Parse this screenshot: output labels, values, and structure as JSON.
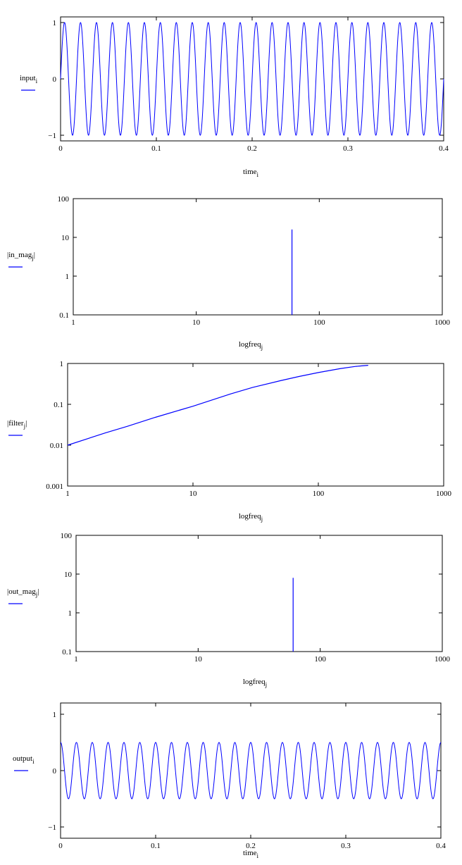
{
  "chart_data": [
    {
      "type": "line",
      "id": "input",
      "ylabel": "input",
      "ylabel_sub": "i",
      "xlabel": "time",
      "xlabel_sub": "i",
      "xscale": "linear",
      "yscale": "linear",
      "xlim": [
        0,
        0.4
      ],
      "ylim": [
        -1.1,
        1.1
      ],
      "xticks": [
        0,
        0.1,
        0.2,
        0.3,
        0.4
      ],
      "xtick_labels": [
        "0",
        "0.1",
        "0.2",
        "0.3",
        "0.4"
      ],
      "yticks": [
        1,
        0,
        -1
      ],
      "ytick_labels": [
        "1",
        "0",
        "−1"
      ],
      "grid": false,
      "color": "#0000ff",
      "series": [
        {
          "function": "sine",
          "amplitude": 1,
          "frequency": 60,
          "phase": 0,
          "x_start": 0,
          "x_end": 0.4
        }
      ]
    },
    {
      "type": "line",
      "id": "in_mag",
      "ylabel": "in_mag",
      "ylabel_sub": "j",
      "ylabel_abs": true,
      "xlabel": "logfreq",
      "xlabel_sub": "j",
      "xscale": "log",
      "yscale": "log",
      "xlim": [
        1,
        1000
      ],
      "ylim": [
        0.1,
        100
      ],
      "xticks": [
        1,
        10,
        100,
        1000
      ],
      "xtick_labels": [
        "1",
        "10",
        "100",
        "1000"
      ],
      "yticks": [
        100,
        10,
        1,
        0.1
      ],
      "ytick_labels": [
        "100",
        "10",
        "1",
        "0.1"
      ],
      "grid": false,
      "color": "#0000ff",
      "series": [
        {
          "spike": {
            "x": 60,
            "y": 16
          }
        }
      ]
    },
    {
      "type": "line",
      "id": "filter",
      "ylabel": "filter",
      "ylabel_sub": "j",
      "ylabel_abs": true,
      "xlabel": "logfreq",
      "xlabel_sub": "j",
      "xscale": "log",
      "yscale": "log",
      "xlim": [
        1,
        1000
      ],
      "ylim": [
        0.001,
        1
      ],
      "xticks": [
        1,
        10,
        100,
        1000
      ],
      "xtick_labels": [
        "1",
        "10",
        "100",
        "1000"
      ],
      "yticks": [
        1,
        0.1,
        0.01,
        0.001
      ],
      "ytick_labels": [
        "1",
        "0.1",
        "0.01",
        "0.001"
      ],
      "grid": false,
      "color": "#0000ff",
      "series": [
        {
          "x": [
            1,
            2,
            3,
            5,
            10,
            20,
            30,
            50,
            70,
            100,
            150,
            200,
            250
          ],
          "y": [
            0.01,
            0.02,
            0.029,
            0.048,
            0.09,
            0.18,
            0.26,
            0.38,
            0.48,
            0.6,
            0.75,
            0.85,
            0.9
          ]
        }
      ]
    },
    {
      "type": "line",
      "id": "out_mag",
      "ylabel": "out_mag",
      "ylabel_sub": "j",
      "ylabel_abs": true,
      "xlabel": "logfreq",
      "xlabel_sub": "j",
      "xscale": "log",
      "yscale": "log",
      "xlim": [
        1,
        1000
      ],
      "ylim": [
        0.1,
        100
      ],
      "xticks": [
        1,
        10,
        100,
        1000
      ],
      "xtick_labels": [
        "1",
        "10",
        "100",
        "1000"
      ],
      "yticks": [
        100,
        10,
        1,
        0.1
      ],
      "ytick_labels": [
        "100",
        "10",
        "1",
        "0.1"
      ],
      "grid": false,
      "color": "#0000ff",
      "series": [
        {
          "spike": {
            "x": 60,
            "y": 8
          }
        }
      ]
    },
    {
      "type": "line",
      "id": "output",
      "ylabel": "output",
      "ylabel_sub": "i",
      "xlabel": "time",
      "xlabel_sub": "i",
      "xscale": "linear",
      "yscale": "linear",
      "xlim": [
        0,
        0.4
      ],
      "ylim": [
        -1.2,
        1.2
      ],
      "xticks": [
        0,
        0.1,
        0.2,
        0.3,
        0.4
      ],
      "xtick_labels": [
        "0",
        "0.1",
        "0.2",
        "0.3",
        "0.4"
      ],
      "yticks": [
        1,
        0,
        -1
      ],
      "ytick_labels": [
        "1",
        "0",
        "−1"
      ],
      "grid": false,
      "color": "#0000ff",
      "series": [
        {
          "function": "cosine",
          "amplitude": 0.5,
          "frequency": 60,
          "phase": 0,
          "x_start": 0,
          "x_end": 0.4
        }
      ]
    }
  ]
}
